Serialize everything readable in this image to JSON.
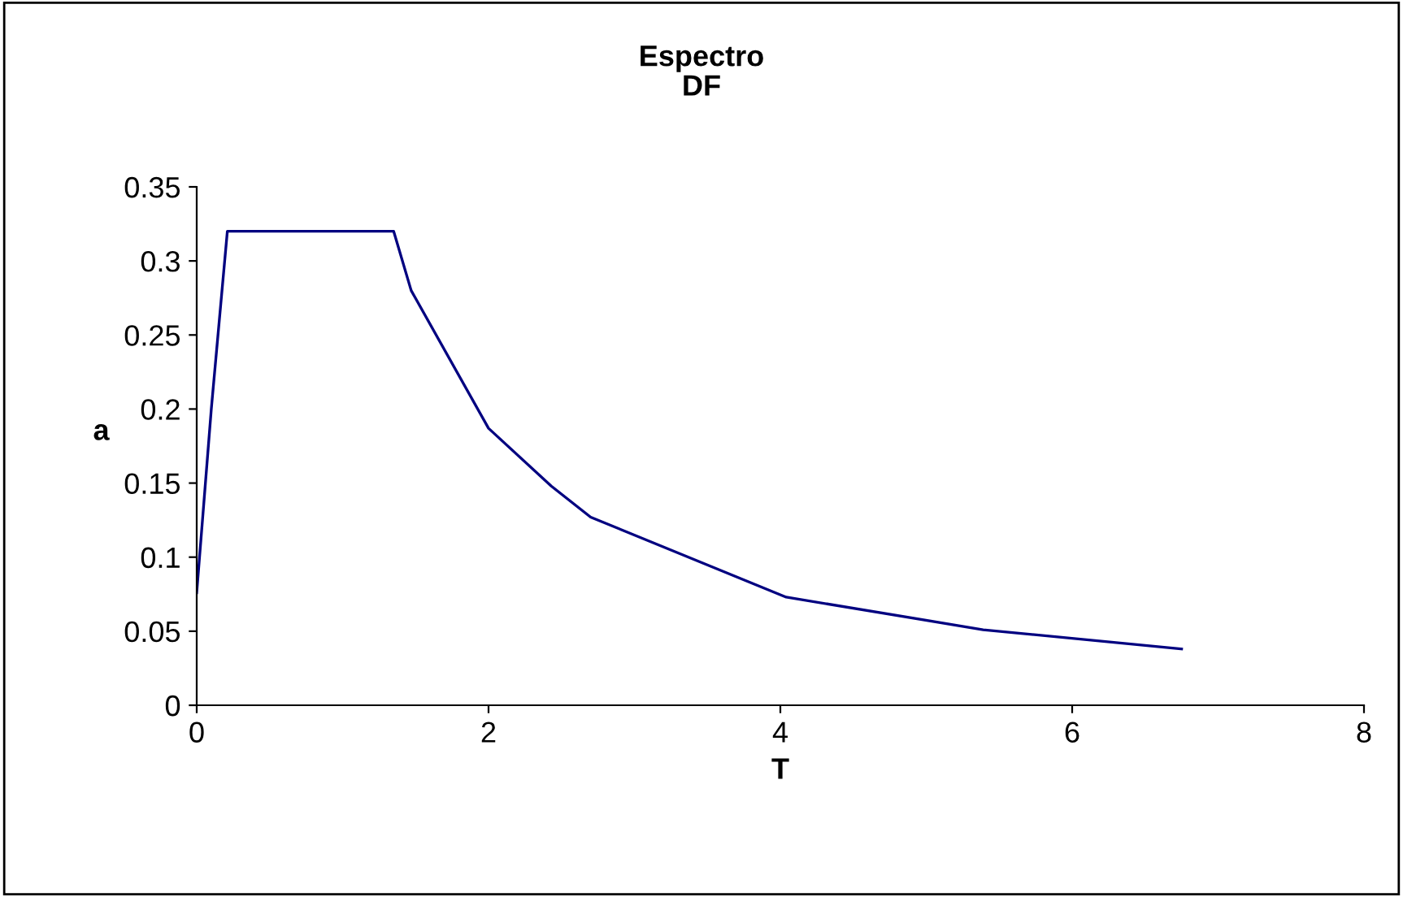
{
  "chart_data": {
    "type": "line",
    "title": "Espectro\nDF",
    "xlabel": "T",
    "ylabel": "a",
    "x": [
      0,
      0.1,
      0.21,
      1.35,
      1.47,
      2.0,
      2.43,
      2.7,
      4.04,
      5.39,
      6.75
    ],
    "series": [
      {
        "color": "#000080",
        "values": [
          0.076,
          0.2,
          0.32,
          0.32,
          0.28,
          0.187,
          0.148,
          0.127,
          0.073,
          0.051,
          0.038
        ]
      }
    ],
    "xlim": [
      0,
      8
    ],
    "xticks": [
      0,
      2,
      4,
      6,
      8
    ],
    "ylim": [
      0,
      0.35
    ],
    "yticks": [
      0,
      0.05,
      0.1,
      0.15,
      0.2,
      0.25,
      0.3,
      0.35
    ],
    "grid": false,
    "legend": false,
    "marker": "none",
    "line_style": "solid"
  }
}
